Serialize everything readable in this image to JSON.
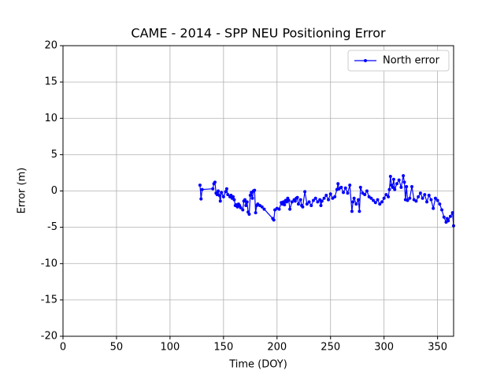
{
  "chart_data": {
    "type": "line",
    "title": "CAME - 2014 - SPP NEU Positioning Error",
    "xlabel": "Time (DOY)",
    "ylabel": "Error (m)",
    "x": [
      128,
      129,
      130,
      140,
      141,
      142,
      143,
      144,
      145,
      146,
      147,
      148,
      150,
      152,
      153,
      154,
      156,
      157,
      158,
      159,
      160,
      161,
      162,
      163,
      164,
      165,
      166,
      168,
      169,
      170,
      171,
      172,
      173,
      174,
      175,
      176,
      177,
      178,
      179,
      180,
      181,
      182,
      184,
      186,
      188,
      196,
      197,
      198,
      200,
      202,
      204,
      205,
      206,
      207,
      208,
      209,
      210,
      211,
      212,
      214,
      216,
      217,
      218,
      219,
      220,
      222,
      223,
      224,
      226,
      228,
      230,
      232,
      234,
      236,
      238,
      240,
      241,
      242,
      244,
      246,
      248,
      250,
      252,
      254,
      256,
      257,
      258,
      260,
      262,
      264,
      266,
      268,
      270,
      271,
      272,
      274,
      276,
      277,
      278,
      280,
      282,
      284,
      286,
      288,
      290,
      292,
      294,
      296,
      298,
      300,
      302,
      304,
      305,
      306,
      307,
      308,
      309,
      310,
      312,
      314,
      316,
      318,
      319,
      320,
      321,
      322,
      324,
      326,
      328,
      330,
      332,
      334,
      336,
      338,
      340,
      342,
      344,
      346,
      348,
      350,
      352,
      354,
      356,
      358,
      359,
      360,
      362,
      364,
      365
    ],
    "series": [
      {
        "name": "North error",
        "color": "#0000ff",
        "values": [
          0.8,
          -1.1,
          0.2,
          0.3,
          1.0,
          1.2,
          -0.3,
          -0.5,
          0.0,
          -0.6,
          -1.4,
          -0.2,
          -0.8,
          -0.1,
          0.3,
          -0.5,
          -0.8,
          -0.6,
          -1.0,
          -0.8,
          -1.2,
          -2.0,
          -1.9,
          -2.2,
          -1.8,
          -2.0,
          -2.3,
          -2.6,
          -1.4,
          -1.2,
          -2.0,
          -1.5,
          -2.9,
          -3.2,
          -0.6,
          -0.2,
          -1.0,
          0.0,
          0.1,
          -3.0,
          -2.0,
          -1.8,
          -2.0,
          -2.2,
          -2.5,
          -3.8,
          -4.0,
          -2.6,
          -2.4,
          -2.5,
          -1.6,
          -1.8,
          -1.5,
          -1.9,
          -1.3,
          -1.5,
          -1.0,
          -1.3,
          -2.5,
          -1.5,
          -1.2,
          -1.4,
          -1.0,
          -0.9,
          -1.8,
          -1.2,
          -2.0,
          -2.2,
          -0.1,
          -1.8,
          -1.5,
          -2.0,
          -1.3,
          -1.0,
          -1.5,
          -1.2,
          -2.0,
          -1.4,
          -1.0,
          -0.6,
          -1.2,
          -0.4,
          -1.0,
          -0.8,
          0.2,
          1.0,
          0.3,
          0.5,
          -0.2,
          0.4,
          -0.3,
          0.8,
          -2.8,
          -1.5,
          -1.0,
          -1.8,
          -1.2,
          -2.8,
          0.5,
          -0.3,
          -0.5,
          0.0,
          -0.8,
          -1.0,
          -1.3,
          -1.6,
          -1.2,
          -1.8,
          -1.5,
          -1.0,
          -0.5,
          -0.8,
          0.2,
          2.0,
          0.8,
          0.5,
          1.6,
          0.2,
          1.0,
          1.5,
          0.5,
          2.1,
          1.2,
          -1.2,
          0.6,
          -1.3,
          -1.0,
          0.6,
          -1.2,
          -1.4,
          -0.8,
          -0.3,
          -1.0,
          -0.5,
          -1.5,
          -0.6,
          -1.2,
          -2.4,
          -1.0,
          -1.3,
          -1.8,
          -2.6,
          -3.6,
          -4.3,
          -3.8,
          -4.1,
          -3.5,
          -3.0,
          -4.8
        ]
      }
    ],
    "xlim": [
      0,
      365
    ],
    "ylim": [
      -20,
      20
    ],
    "xticks": [
      0,
      50,
      100,
      150,
      200,
      250,
      300,
      350
    ],
    "yticks": [
      -20,
      -15,
      -10,
      -5,
      0,
      5,
      10,
      15,
      20
    ],
    "grid": true,
    "legend": "upper right"
  }
}
